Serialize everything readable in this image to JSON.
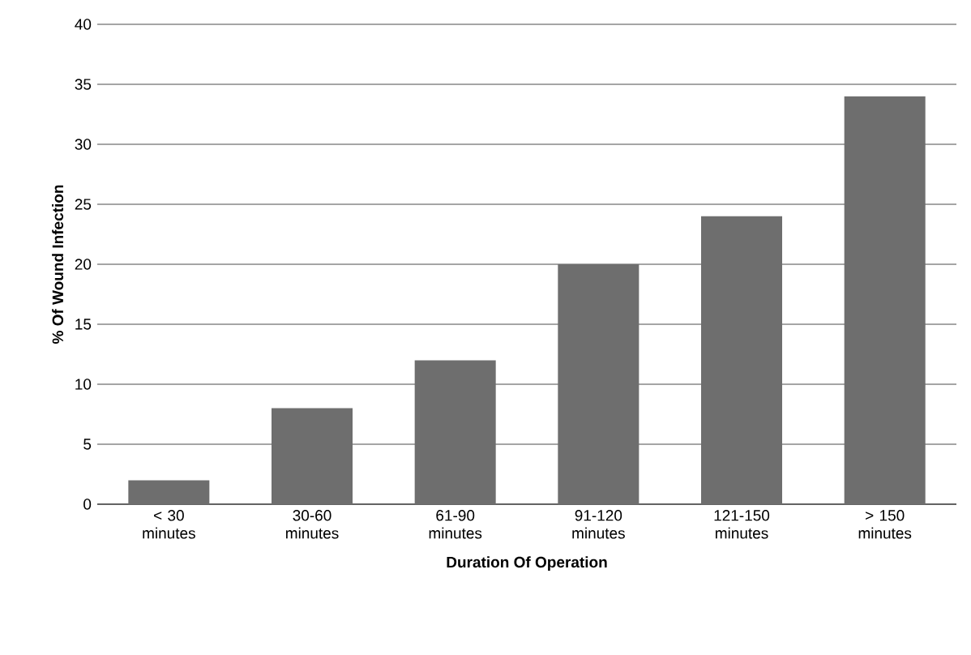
{
  "chart_data": {
    "type": "bar",
    "xlabel": "Duration Of Operation",
    "ylabel": "% Of Wound Infection",
    "categories": [
      "< 30 minutes",
      "30-60 minutes",
      "61-90 minutes",
      "91-120 minutes",
      "121-150 minutes",
      "> 150 minutes"
    ],
    "values": [
      2,
      8,
      12,
      20,
      24,
      34
    ],
    "color": "#6e6e6e",
    "ylim": [
      0,
      40
    ],
    "yticks": [
      0,
      5,
      10,
      15,
      20,
      25,
      30,
      35,
      40
    ],
    "grid": "y"
  }
}
